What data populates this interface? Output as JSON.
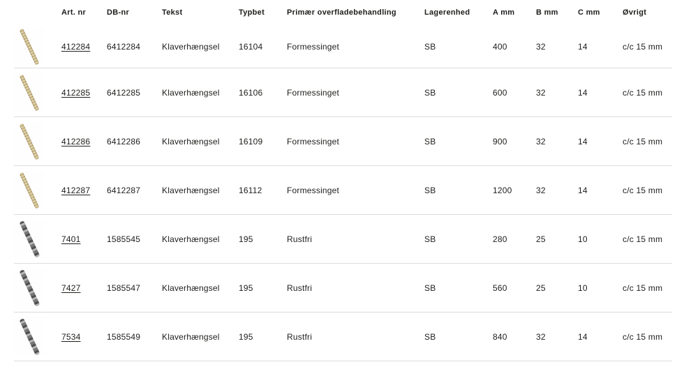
{
  "colors": {
    "text": "#1d1d1b",
    "divider": "#dcdcdc",
    "brass": "#c3b07a",
    "steel": "#8c8c8c"
  },
  "table": {
    "columns": [
      {
        "key": "thumbnail",
        "label": ""
      },
      {
        "key": "art_nr",
        "label": "Art. nr"
      },
      {
        "key": "db_nr",
        "label": "DB-nr"
      },
      {
        "key": "tekst",
        "label": "Tekst"
      },
      {
        "key": "typbet",
        "label": "Typbet"
      },
      {
        "key": "overflade",
        "label": "Primær overfladebehandling"
      },
      {
        "key": "lagerenhed",
        "label": "Lagerenhed"
      },
      {
        "key": "a_mm",
        "label": "A mm"
      },
      {
        "key": "b_mm",
        "label": "B mm"
      },
      {
        "key": "c_mm",
        "label": "C mm"
      },
      {
        "key": "ovrigt",
        "label": "Øvrigt"
      }
    ],
    "rows": [
      {
        "thumbnail": "brass-piano-hinge",
        "art_nr": "412284",
        "db_nr": "6412284",
        "tekst": "Klaverhængsel",
        "typbet": "16104",
        "overflade": "Formessinget",
        "lagerenhed": "SB",
        "a_mm": "400",
        "b_mm": "32",
        "c_mm": "14",
        "ovrigt": "c/c 15 mm"
      },
      {
        "thumbnail": "brass-piano-hinge",
        "art_nr": "412285",
        "db_nr": "6412285",
        "tekst": "Klaverhængsel",
        "typbet": "16106",
        "overflade": "Formessinget",
        "lagerenhed": "SB",
        "a_mm": "600",
        "b_mm": "32",
        "c_mm": "14",
        "ovrigt": "c/c 15 mm"
      },
      {
        "thumbnail": "brass-piano-hinge",
        "art_nr": "412286",
        "db_nr": "6412286",
        "tekst": "Klaverhængsel",
        "typbet": "16109",
        "overflade": "Formessinget",
        "lagerenhed": "SB",
        "a_mm": "900",
        "b_mm": "32",
        "c_mm": "14",
        "ovrigt": "c/c 15 mm"
      },
      {
        "thumbnail": "brass-piano-hinge",
        "art_nr": "412287",
        "db_nr": "6412287",
        "tekst": "Klaverhængsel",
        "typbet": "16112",
        "overflade": "Formessinget",
        "lagerenhed": "SB",
        "a_mm": "1200",
        "b_mm": "32",
        "c_mm": "14",
        "ovrigt": "c/c 15 mm"
      },
      {
        "thumbnail": "steel-piano-hinge",
        "art_nr": "7401",
        "db_nr": "1585545",
        "tekst": "Klaverhængsel",
        "typbet": "195",
        "overflade": "Rustfri",
        "lagerenhed": "SB",
        "a_mm": "280",
        "b_mm": "25",
        "c_mm": "10",
        "ovrigt": "c/c 15 mm"
      },
      {
        "thumbnail": "steel-piano-hinge",
        "art_nr": "7427",
        "db_nr": "1585547",
        "tekst": "Klaverhængsel",
        "typbet": "195",
        "overflade": "Rustfri",
        "lagerenhed": "SB",
        "a_mm": "560",
        "b_mm": "25",
        "c_mm": "10",
        "ovrigt": "c/c 15 mm"
      },
      {
        "thumbnail": "steel-piano-hinge",
        "art_nr": "7534",
        "db_nr": "1585549",
        "tekst": "Klaverhængsel",
        "typbet": "195",
        "overflade": "Rustfri",
        "lagerenhed": "SB",
        "a_mm": "840",
        "b_mm": "32",
        "c_mm": "14",
        "ovrigt": "c/c 15 mm"
      }
    ]
  }
}
